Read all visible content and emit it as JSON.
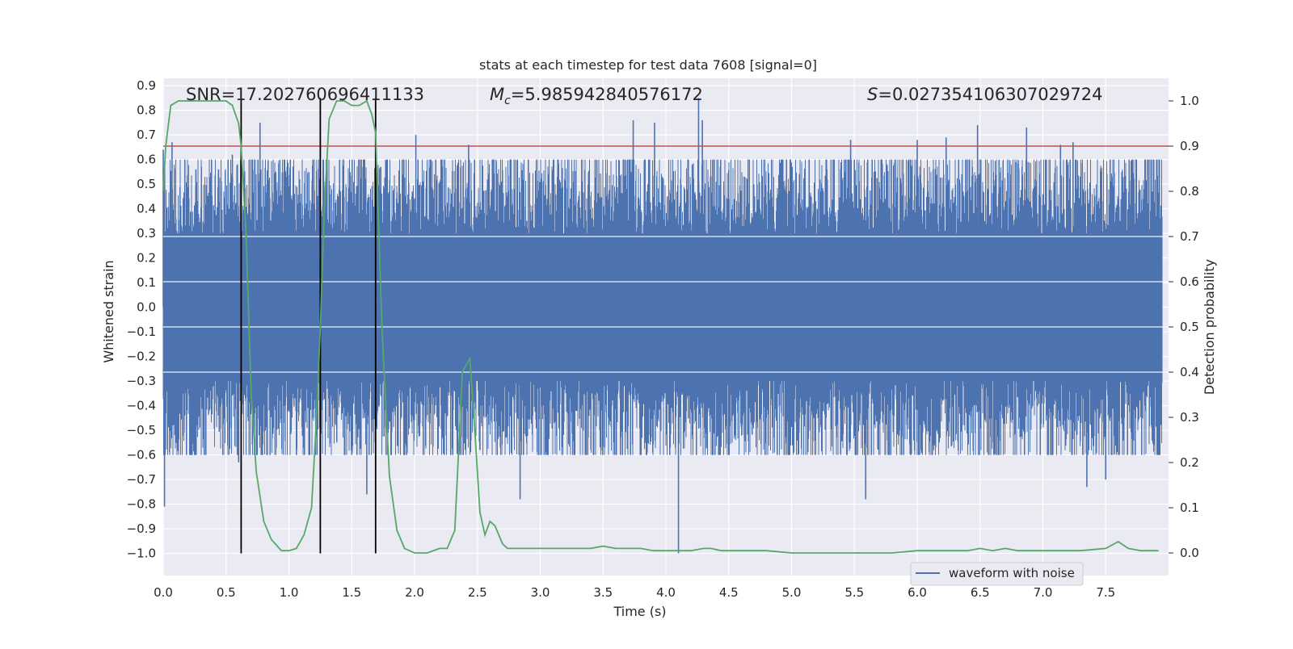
{
  "colors": {
    "plot_bg": "#eaeaf2",
    "grid": "#ffffff",
    "waveform": "#4c72b0",
    "probability": "#55a868",
    "threshold": "#c44e52",
    "marker": "#000000",
    "text": "#262626"
  },
  "chart_data": {
    "type": "line",
    "title": "stats at each timestep for test data 7608 [signal=0]",
    "xlabel": "Time (s)",
    "ylabel_left": "Whitened strain",
    "ylabel_right": "Detection probability",
    "xlim": [
      0,
      8
    ],
    "ylim_left": [
      -1.09,
      0.93
    ],
    "ylim_right": [
      -0.05,
      1.05
    ],
    "xticks": [
      0.0,
      0.5,
      1.0,
      1.5,
      2.0,
      2.5,
      3.0,
      3.5,
      4.0,
      4.5,
      5.0,
      5.5,
      6.0,
      6.5,
      7.0,
      7.5
    ],
    "xtick_labels": [
      "0.0",
      "0.5",
      "1.0",
      "1.5",
      "2.0",
      "2.5",
      "3.0",
      "3.5",
      "4.0",
      "4.5",
      "5.0",
      "5.5",
      "6.0",
      "6.5",
      "7.0",
      "7.5"
    ],
    "yticks_left": [
      0.9,
      0.8,
      0.7,
      0.6,
      0.5,
      0.4,
      0.3,
      0.2,
      0.1,
      0.0,
      -0.1,
      -0.2,
      -0.3,
      -0.4,
      -0.5,
      -0.6,
      -0.7,
      -0.8,
      -0.9,
      -1.0
    ],
    "ytick_labels_left": [
      "0.9",
      "0.8",
      "0.7",
      "0.6",
      "0.5",
      "0.4",
      "0.3",
      "0.2",
      "0.1",
      "0.0",
      "−0.1",
      "−0.2",
      "−0.3",
      "−0.4",
      "−0.5",
      "−0.6",
      "−0.7",
      "−0.8",
      "−0.9",
      "−1.0"
    ],
    "yticks_right": [
      1.0,
      0.9,
      0.8,
      0.7,
      0.6,
      0.5,
      0.4,
      0.3,
      0.2,
      0.1,
      0.0
    ],
    "ytick_labels_right": [
      "1.0",
      "0.9",
      "0.8",
      "0.7",
      "0.6",
      "0.5",
      "0.4",
      "0.3",
      "0.2",
      "0.1",
      "0.0"
    ],
    "grid": true,
    "legend": {
      "placement": "lower-center-right",
      "entries": [
        "waveform with noise"
      ]
    },
    "annotations": {
      "snr_text": "SNR=17.202760696411133",
      "mc_symbol": "M",
      "mc_subscript": "c",
      "mc_value": "=5.985942840576172",
      "s_symbol": "S",
      "s_value": "=0.027354106307029724"
    },
    "threshold_line": {
      "axis": "right",
      "y": 0.9
    },
    "vertical_markers": {
      "x": [
        0.62,
        1.25,
        1.69
      ],
      "y_from": -1.0,
      "y_to": 0.85
    },
    "series": [
      {
        "name": "waveform with noise",
        "axis": "left",
        "kind": "noise-band",
        "core_amplitude": 0.3,
        "typical_peak": 0.45,
        "spikes": [
          {
            "x": 0.0,
            "y": 0.64
          },
          {
            "x": 0.01,
            "y": -0.81
          },
          {
            "x": 0.07,
            "y": 0.67
          },
          {
            "x": 0.26,
            "y": 0.56
          },
          {
            "x": 0.44,
            "y": 0.56
          },
          {
            "x": 0.55,
            "y": 0.62
          },
          {
            "x": 0.59,
            "y": 0.58
          },
          {
            "x": 0.77,
            "y": 0.75
          },
          {
            "x": 0.6,
            "y": -0.63
          },
          {
            "x": 0.96,
            "y": 0.55
          },
          {
            "x": 1.06,
            "y": -0.6
          },
          {
            "x": 1.59,
            "y": 0.57
          },
          {
            "x": 1.62,
            "y": -0.76
          },
          {
            "x": 1.73,
            "y": 0.57
          },
          {
            "x": 2.01,
            "y": 0.7
          },
          {
            "x": 2.43,
            "y": 0.66
          },
          {
            "x": 2.52,
            "y": -0.58
          },
          {
            "x": 2.84,
            "y": -0.78
          },
          {
            "x": 3.74,
            "y": 0.76
          },
          {
            "x": 3.91,
            "y": 0.75
          },
          {
            "x": 4.1,
            "y": -1.0
          },
          {
            "x": 4.21,
            "y": 0.58
          },
          {
            "x": 4.26,
            "y": 0.85
          },
          {
            "x": 4.29,
            "y": 0.76
          },
          {
            "x": 5.14,
            "y": 0.6
          },
          {
            "x": 5.47,
            "y": 0.68
          },
          {
            "x": 5.59,
            "y": -0.78
          },
          {
            "x": 6.0,
            "y": 0.68
          },
          {
            "x": 6.23,
            "y": 0.69
          },
          {
            "x": 6.48,
            "y": 0.74
          },
          {
            "x": 6.87,
            "y": 0.73
          },
          {
            "x": 7.14,
            "y": 0.66
          },
          {
            "x": 7.24,
            "y": 0.67
          },
          {
            "x": 7.35,
            "y": -0.73
          },
          {
            "x": 7.5,
            "y": -0.7
          },
          {
            "x": 7.6,
            "y": -0.6
          }
        ]
      },
      {
        "axis": "right",
        "x": [
          0.0,
          0.02,
          0.06,
          0.12,
          0.2,
          0.3,
          0.4,
          0.5,
          0.55,
          0.6,
          0.62,
          0.66,
          0.7,
          0.74,
          0.8,
          0.86,
          0.94,
          1.0,
          1.06,
          1.12,
          1.18,
          1.22,
          1.25,
          1.28,
          1.32,
          1.38,
          1.44,
          1.5,
          1.56,
          1.62,
          1.66,
          1.69,
          1.74,
          1.8,
          1.86,
          1.92,
          2.0,
          2.1,
          2.2,
          2.26,
          2.32,
          2.38,
          2.44,
          2.48,
          2.52,
          2.56,
          2.6,
          2.64,
          2.7,
          2.74,
          2.8,
          2.86,
          3.0,
          3.2,
          3.4,
          3.5,
          3.6,
          3.8,
          3.9,
          4.0,
          4.2,
          4.3,
          4.36,
          4.44,
          4.6,
          4.8,
          5.0,
          5.4,
          5.8,
          6.0,
          6.2,
          6.4,
          6.5,
          6.6,
          6.7,
          6.8,
          7.0,
          7.3,
          7.5,
          7.6,
          7.68,
          7.78,
          7.92
        ],
        "values": [
          0.8,
          0.9,
          0.99,
          1.0,
          1.0,
          1.0,
          1.0,
          1.0,
          0.99,
          0.95,
          0.9,
          0.7,
          0.35,
          0.18,
          0.07,
          0.03,
          0.005,
          0.005,
          0.01,
          0.04,
          0.1,
          0.3,
          0.5,
          0.75,
          0.96,
          1.0,
          1.0,
          0.99,
          0.99,
          1.0,
          0.97,
          0.93,
          0.5,
          0.17,
          0.05,
          0.01,
          0.0,
          0.0,
          0.01,
          0.01,
          0.05,
          0.4,
          0.43,
          0.27,
          0.09,
          0.04,
          0.07,
          0.06,
          0.02,
          0.01,
          0.01,
          0.01,
          0.01,
          0.01,
          0.01,
          0.015,
          0.01,
          0.01,
          0.005,
          0.005,
          0.005,
          0.01,
          0.01,
          0.005,
          0.005,
          0.005,
          0.0,
          0.0,
          0.0,
          0.005,
          0.005,
          0.005,
          0.01,
          0.005,
          0.01,
          0.005,
          0.005,
          0.005,
          0.01,
          0.025,
          0.01,
          0.005,
          0.005
        ]
      }
    ]
  }
}
